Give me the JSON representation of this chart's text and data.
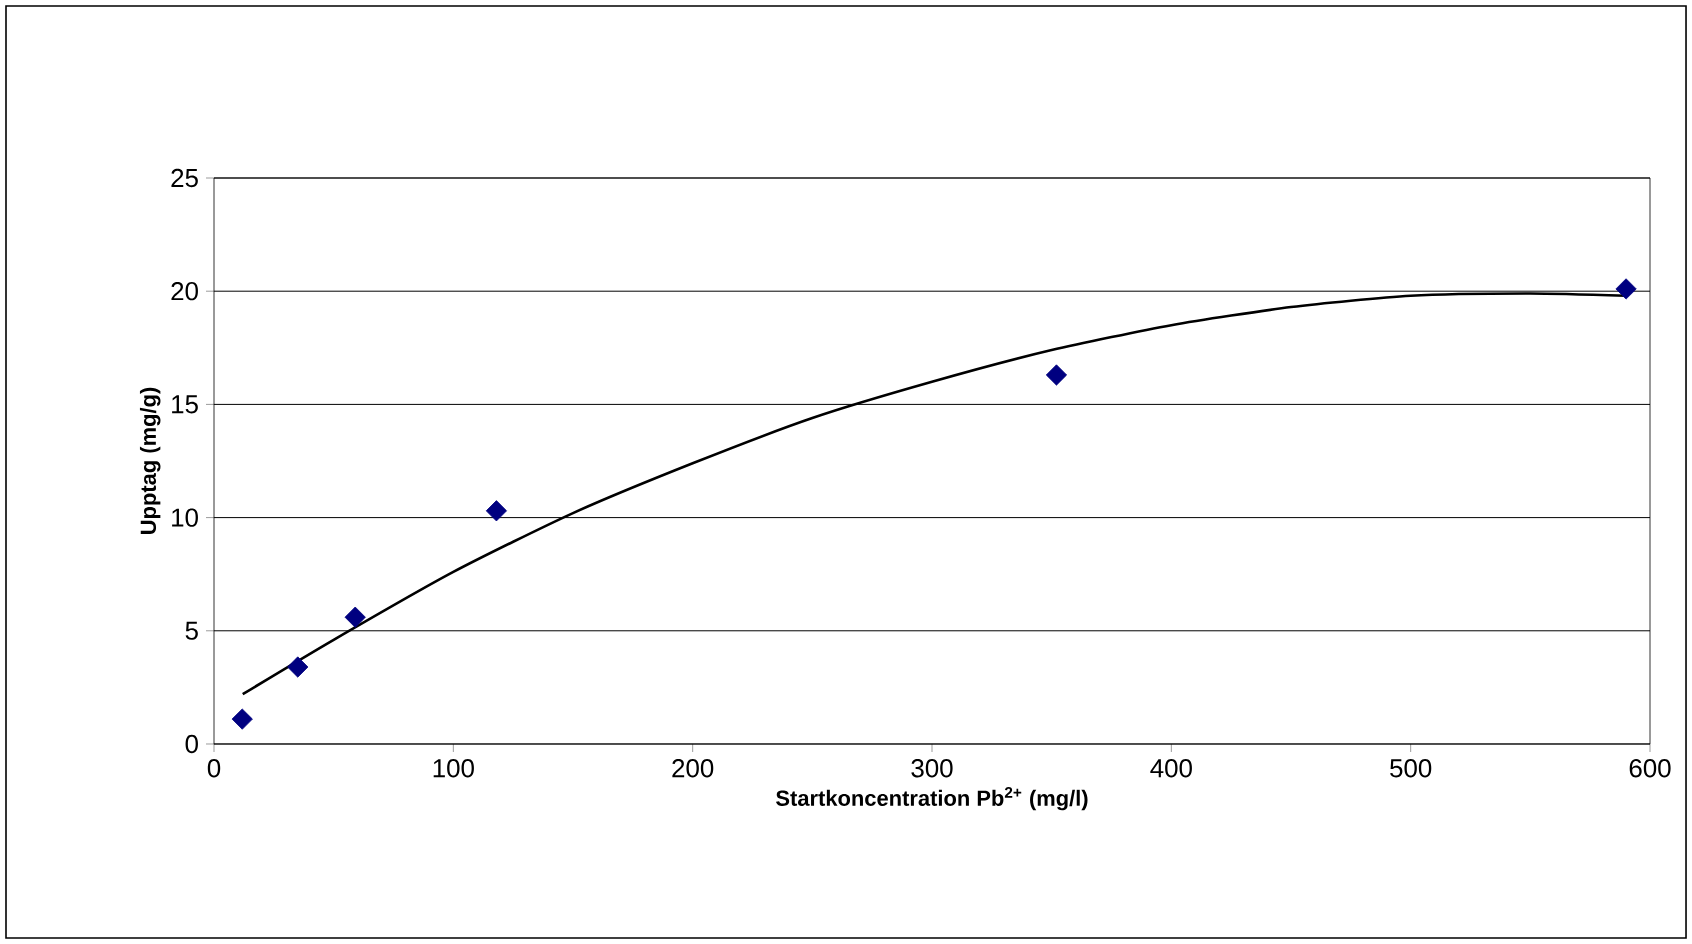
{
  "chart_data": {
    "type": "scatter",
    "xlabel": "Startkoncentration Pb$^{2+}$ (mg/l)",
    "ylabel": "Upptag (mg/g)",
    "xlim": [
      0,
      600
    ],
    "xticks": [
      0,
      100,
      200,
      300,
      400,
      500,
      600
    ],
    "ylim": [
      0,
      25
    ],
    "yticks": [
      0,
      5,
      10,
      15,
      20,
      25
    ],
    "grid": "y",
    "series": [
      {
        "color": "#000080",
        "marker": "diamond",
        "x": [
          11.8,
          35,
          59,
          118,
          352,
          590
        ],
        "values": [
          1.1,
          3.4,
          5.6,
          10.3,
          16.3,
          20.1
        ]
      },
      {
        "type": "line",
        "color": "#000000",
        "marker": "none",
        "line_style": "solid",
        "x": [
          12,
          50,
          100,
          150,
          200,
          250,
          300,
          350,
          400,
          450,
          500,
          550,
          590
        ],
        "values": [
          2.2,
          4.6,
          7.6,
          10.2,
          12.4,
          14.4,
          16.0,
          17.4,
          18.5,
          19.3,
          19.8,
          19.9,
          19.8
        ]
      }
    ]
  }
}
